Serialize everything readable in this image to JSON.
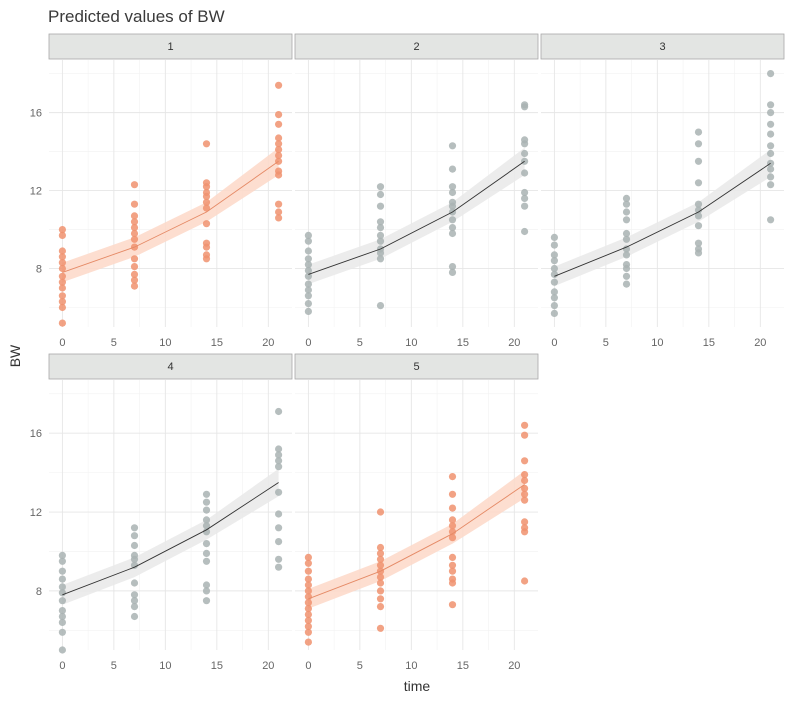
{
  "chart_data": {
    "type": "scatter",
    "title": "Predicted values of BW",
    "xlabel": "time",
    "ylabel": "BW",
    "xlim": [
      -1.3,
      22.3
    ],
    "ylim": [
      5.0,
      18.7
    ],
    "x_ticks": [
      0,
      5,
      10,
      15,
      20
    ],
    "y_ticks": [
      8,
      12,
      16
    ],
    "grid": true,
    "colors": {
      "orange": "#f0926e",
      "grey": "#a9b3b3",
      "ribbon_orange": "#fdd8c8",
      "ribbon_grey": "#e9e9e9"
    },
    "panels": [
      {
        "label": "1",
        "color": "orange",
        "fit": {
          "x": [
            0,
            7,
            14,
            21
          ],
          "y": [
            7.8,
            9.1,
            10.9,
            13.5
          ],
          "lower": [
            7.3,
            8.6,
            10.4,
            12.8
          ],
          "upper": [
            8.3,
            9.6,
            11.4,
            14.2
          ]
        },
        "points": [
          [
            0,
            10.0
          ],
          [
            0,
            9.7
          ],
          [
            0,
            8.9
          ],
          [
            0,
            8.6
          ],
          [
            0,
            8.3
          ],
          [
            0,
            8.0
          ],
          [
            0,
            7.6
          ],
          [
            0,
            7.3
          ],
          [
            0,
            7.0
          ],
          [
            0,
            6.6
          ],
          [
            0,
            6.3
          ],
          [
            0,
            6.0
          ],
          [
            0,
            5.2
          ],
          [
            7,
            12.3
          ],
          [
            7,
            11.3
          ],
          [
            7,
            10.7
          ],
          [
            7,
            10.4
          ],
          [
            7,
            10.1
          ],
          [
            7,
            9.8
          ],
          [
            7,
            9.5
          ],
          [
            7,
            9.1
          ],
          [
            7,
            8.5
          ],
          [
            7,
            8.1
          ],
          [
            7,
            7.7
          ],
          [
            7,
            7.4
          ],
          [
            7,
            7.1
          ],
          [
            14,
            14.4
          ],
          [
            14,
            12.4
          ],
          [
            14,
            12.2
          ],
          [
            14,
            11.9
          ],
          [
            14,
            11.7
          ],
          [
            14,
            11.4
          ],
          [
            14,
            11.1
          ],
          [
            14,
            10.3
          ],
          [
            14,
            9.3
          ],
          [
            14,
            9.1
          ],
          [
            14,
            8.7
          ],
          [
            14,
            8.5
          ],
          [
            21,
            17.4
          ],
          [
            21,
            15.9
          ],
          [
            21,
            15.4
          ],
          [
            21,
            14.7
          ],
          [
            21,
            14.4
          ],
          [
            21,
            14.1
          ],
          [
            21,
            13.8
          ],
          [
            21,
            13.5
          ],
          [
            21,
            13.0
          ],
          [
            21,
            12.8
          ],
          [
            21,
            11.3
          ],
          [
            21,
            10.9
          ],
          [
            21,
            10.6
          ]
        ]
      },
      {
        "label": "2",
        "color": "grey",
        "fit": {
          "x": [
            0,
            7,
            14,
            21
          ],
          "y": [
            7.7,
            9.0,
            10.9,
            13.5
          ],
          "lower": [
            7.2,
            8.5,
            10.4,
            12.8
          ],
          "upper": [
            8.2,
            9.5,
            11.4,
            14.2
          ]
        },
        "points": [
          [
            0,
            9.7
          ],
          [
            0,
            9.4
          ],
          [
            0,
            8.9
          ],
          [
            0,
            8.5
          ],
          [
            0,
            8.2
          ],
          [
            0,
            7.9
          ],
          [
            0,
            7.6
          ],
          [
            0,
            7.2
          ],
          [
            0,
            6.9
          ],
          [
            0,
            6.6
          ],
          [
            0,
            6.2
          ],
          [
            0,
            5.8
          ],
          [
            7,
            12.2
          ],
          [
            7,
            11.8
          ],
          [
            7,
            11.2
          ],
          [
            7,
            10.4
          ],
          [
            7,
            10.1
          ],
          [
            7,
            9.7
          ],
          [
            7,
            9.4
          ],
          [
            7,
            9.0
          ],
          [
            7,
            8.8
          ],
          [
            7,
            8.5
          ],
          [
            7,
            6.1
          ],
          [
            14,
            14.3
          ],
          [
            14,
            13.1
          ],
          [
            14,
            12.2
          ],
          [
            14,
            11.9
          ],
          [
            14,
            11.4
          ],
          [
            14,
            11.2
          ],
          [
            14,
            10.9
          ],
          [
            14,
            10.5
          ],
          [
            14,
            10.1
          ],
          [
            14,
            9.8
          ],
          [
            14,
            8.1
          ],
          [
            14,
            7.8
          ],
          [
            21,
            16.4
          ],
          [
            21,
            16.3
          ],
          [
            21,
            14.6
          ],
          [
            21,
            14.4
          ],
          [
            21,
            13.9
          ],
          [
            21,
            13.5
          ],
          [
            21,
            12.9
          ],
          [
            21,
            11.9
          ],
          [
            21,
            11.6
          ],
          [
            21,
            11.2
          ],
          [
            21,
            9.9
          ]
        ]
      },
      {
        "label": "3",
        "color": "grey",
        "fit": {
          "x": [
            0,
            7,
            14,
            21
          ],
          "y": [
            7.6,
            9.1,
            10.9,
            13.4
          ],
          "lower": [
            7.1,
            8.6,
            10.4,
            12.7
          ],
          "upper": [
            8.1,
            9.6,
            11.4,
            14.1
          ]
        },
        "points": [
          [
            0,
            9.6
          ],
          [
            0,
            9.2
          ],
          [
            0,
            8.7
          ],
          [
            0,
            8.4
          ],
          [
            0,
            8.0
          ],
          [
            0,
            7.7
          ],
          [
            0,
            7.3
          ],
          [
            0,
            6.8
          ],
          [
            0,
            6.5
          ],
          [
            0,
            6.1
          ],
          [
            0,
            5.7
          ],
          [
            7,
            11.6
          ],
          [
            7,
            11.3
          ],
          [
            7,
            10.9
          ],
          [
            7,
            10.5
          ],
          [
            7,
            9.8
          ],
          [
            7,
            9.5
          ],
          [
            7,
            9.0
          ],
          [
            7,
            8.7
          ],
          [
            7,
            8.2
          ],
          [
            7,
            8.0
          ],
          [
            7,
            7.6
          ],
          [
            7,
            7.2
          ],
          [
            14,
            15.0
          ],
          [
            14,
            14.4
          ],
          [
            14,
            13.5
          ],
          [
            14,
            12.4
          ],
          [
            14,
            11.3
          ],
          [
            14,
            11.0
          ],
          [
            14,
            10.7
          ],
          [
            14,
            10.2
          ],
          [
            14,
            9.3
          ],
          [
            14,
            9.0
          ],
          [
            14,
            8.8
          ],
          [
            21,
            18.0
          ],
          [
            21,
            16.4
          ],
          [
            21,
            16.0
          ],
          [
            21,
            15.4
          ],
          [
            21,
            14.9
          ],
          [
            21,
            14.3
          ],
          [
            21,
            13.9
          ],
          [
            21,
            13.4
          ],
          [
            21,
            13.1
          ],
          [
            21,
            12.7
          ],
          [
            21,
            12.3
          ],
          [
            21,
            10.5
          ]
        ]
      },
      {
        "label": "4",
        "color": "grey",
        "fit": {
          "x": [
            0,
            7,
            14,
            21
          ],
          "y": [
            7.8,
            9.2,
            11.1,
            13.5
          ],
          "lower": [
            7.3,
            8.7,
            10.6,
            12.8
          ],
          "upper": [
            8.3,
            9.7,
            11.6,
            14.2
          ]
        },
        "points": [
          [
            0,
            9.8
          ],
          [
            0,
            9.5
          ],
          [
            0,
            9.0
          ],
          [
            0,
            8.6
          ],
          [
            0,
            8.2
          ],
          [
            0,
            7.9
          ],
          [
            0,
            7.5
          ],
          [
            0,
            7.0
          ],
          [
            0,
            6.7
          ],
          [
            0,
            6.4
          ],
          [
            0,
            5.9
          ],
          [
            0,
            5.0
          ],
          [
            7,
            11.2
          ],
          [
            7,
            10.8
          ],
          [
            7,
            10.3
          ],
          [
            7,
            9.8
          ],
          [
            7,
            9.6
          ],
          [
            7,
            9.3
          ],
          [
            7,
            8.4
          ],
          [
            7,
            7.8
          ],
          [
            7,
            7.5
          ],
          [
            7,
            7.2
          ],
          [
            7,
            6.7
          ],
          [
            14,
            12.9
          ],
          [
            14,
            12.5
          ],
          [
            14,
            12.1
          ],
          [
            14,
            11.6
          ],
          [
            14,
            11.3
          ],
          [
            14,
            11.0
          ],
          [
            14,
            10.4
          ],
          [
            14,
            9.9
          ],
          [
            14,
            9.5
          ],
          [
            14,
            8.3
          ],
          [
            14,
            8.0
          ],
          [
            14,
            7.5
          ],
          [
            21,
            17.1
          ],
          [
            21,
            15.2
          ],
          [
            21,
            14.9
          ],
          [
            21,
            14.6
          ],
          [
            21,
            14.3
          ],
          [
            21,
            13.0
          ],
          [
            21,
            11.9
          ],
          [
            21,
            11.2
          ],
          [
            21,
            10.5
          ],
          [
            21,
            9.6
          ],
          [
            21,
            9.2
          ]
        ]
      },
      {
        "label": "5",
        "color": "orange",
        "fit": {
          "x": [
            0,
            7,
            14,
            21
          ],
          "y": [
            7.6,
            9.0,
            10.9,
            13.4
          ],
          "lower": [
            7.1,
            8.5,
            10.4,
            12.7
          ],
          "upper": [
            8.1,
            9.5,
            11.4,
            14.1
          ]
        },
        "points": [
          [
            0,
            9.7
          ],
          [
            0,
            9.4
          ],
          [
            0,
            9.0
          ],
          [
            0,
            8.6
          ],
          [
            0,
            8.3
          ],
          [
            0,
            8.0
          ],
          [
            0,
            7.7
          ],
          [
            0,
            7.4
          ],
          [
            0,
            7.1
          ],
          [
            0,
            6.8
          ],
          [
            0,
            6.5
          ],
          [
            0,
            6.2
          ],
          [
            0,
            5.9
          ],
          [
            0,
            5.4
          ],
          [
            7,
            12.0
          ],
          [
            7,
            10.2
          ],
          [
            7,
            9.9
          ],
          [
            7,
            9.6
          ],
          [
            7,
            9.3
          ],
          [
            7,
            9.0
          ],
          [
            7,
            8.7
          ],
          [
            7,
            8.4
          ],
          [
            7,
            8.0
          ],
          [
            7,
            7.6
          ],
          [
            7,
            7.2
          ],
          [
            7,
            6.1
          ],
          [
            14,
            13.8
          ],
          [
            14,
            12.9
          ],
          [
            14,
            12.2
          ],
          [
            14,
            11.6
          ],
          [
            14,
            11.3
          ],
          [
            14,
            11.0
          ],
          [
            14,
            10.7
          ],
          [
            14,
            9.7
          ],
          [
            14,
            9.3
          ],
          [
            14,
            9.0
          ],
          [
            14,
            8.6
          ],
          [
            14,
            8.4
          ],
          [
            14,
            7.3
          ],
          [
            21,
            16.4
          ],
          [
            21,
            15.9
          ],
          [
            21,
            14.6
          ],
          [
            21,
            13.9
          ],
          [
            21,
            13.6
          ],
          [
            21,
            13.2
          ],
          [
            21,
            12.9
          ],
          [
            21,
            12.6
          ],
          [
            21,
            11.5
          ],
          [
            21,
            11.2
          ],
          [
            21,
            11.0
          ],
          [
            21,
            8.5
          ]
        ]
      }
    ]
  }
}
